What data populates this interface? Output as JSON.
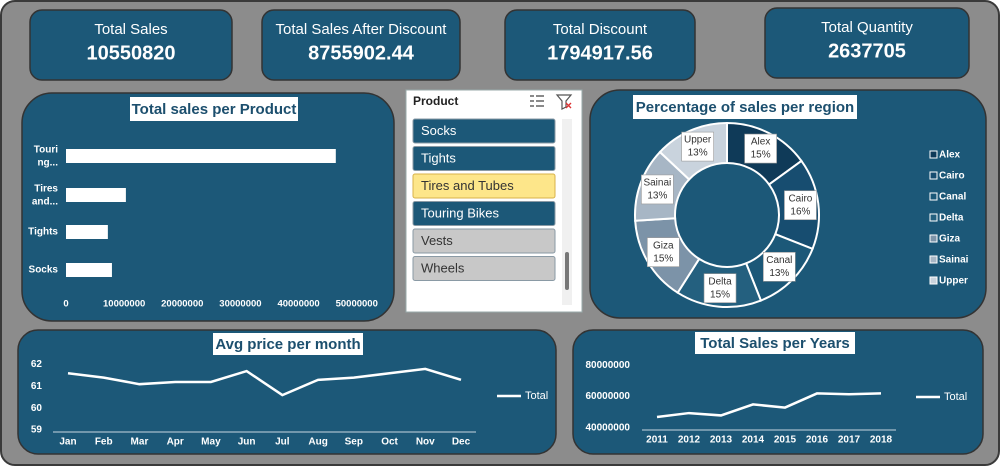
{
  "kpis": [
    {
      "title": "Total Sales",
      "value": 10550820
    },
    {
      "title": "Total Sales After Discount",
      "value": 8755902.44
    },
    {
      "title": "Total Discount",
      "value": 1794917.56
    },
    {
      "title": "Total Quantity",
      "value": 2637705
    }
  ],
  "slicer": {
    "title": "Product",
    "items": [
      {
        "label": "Socks",
        "state": "selected"
      },
      {
        "label": "Tights",
        "state": "selected"
      },
      {
        "label": "Tires and Tubes",
        "state": "hover"
      },
      {
        "label": "Touring Bikes",
        "state": "selected"
      },
      {
        "label": "Vests",
        "state": "unselected"
      },
      {
        "label": "Wheels",
        "state": "unselected"
      }
    ]
  },
  "chart_data": [
    {
      "type": "hbar",
      "title": "Total sales per Product",
      "categories": [
        "Touri ng...",
        "Tires and...",
        "Tights",
        "Socks"
      ],
      "values": [
        46400000,
        10300000,
        7200000,
        7900000
      ],
      "color": "#ffffff",
      "xlim": [
        0,
        54000000
      ],
      "xticks": [
        0,
        10000000,
        20000000,
        30000000,
        40000000,
        50000000
      ]
    },
    {
      "type": "donut",
      "title": "Percentage of sales per region",
      "categories": [
        "Alex",
        "Cairo",
        "Canal",
        "Delta",
        "Giza",
        "Sainai",
        "Upper"
      ],
      "values": [
        15,
        16,
        13,
        15,
        15,
        13,
        13
      ],
      "value_labels": [
        "15%",
        "16%",
        "13%",
        "15%",
        "15%",
        "13%",
        "13%"
      ],
      "colors": [
        "#0f3a58",
        "#174d70",
        "#1c5878",
        "#24607f",
        "#7c93a8",
        "#a7b6c5",
        "#c9d3dd"
      ],
      "legend": "right"
    },
    {
      "type": "line",
      "title": "Avg price per month",
      "categories": [
        "Jan",
        "Feb",
        "Mar",
        "Apr",
        "May",
        "Jun",
        "Jul",
        "Aug",
        "Sep",
        "Oct",
        "Nov",
        "Dec"
      ],
      "series": [
        {
          "name": "Total",
          "color": "#ffffff",
          "values": [
            61.6,
            61.4,
            61.1,
            61.2,
            61.2,
            61.7,
            60.6,
            61.3,
            61.4,
            61.6,
            61.8,
            61.3
          ]
        }
      ],
      "ylim": [
        59,
        62.3
      ],
      "yticks": [
        59,
        60,
        61,
        62
      ],
      "legend": "right"
    },
    {
      "type": "line",
      "title": "Total Sales per Years",
      "categories": [
        "2011",
        "2012",
        "2013",
        "2014",
        "2015",
        "2016",
        "2017",
        "2018"
      ],
      "series": [
        {
          "name": "Total",
          "color": "#ffffff",
          "values": [
            47000000,
            49500000,
            48000000,
            55000000,
            53000000,
            62000000,
            61500000,
            62000000
          ]
        }
      ],
      "ylim": [
        40000000,
        82000000
      ],
      "yticks": [
        40000000,
        60000000,
        80000000
      ],
      "legend": "right"
    }
  ]
}
